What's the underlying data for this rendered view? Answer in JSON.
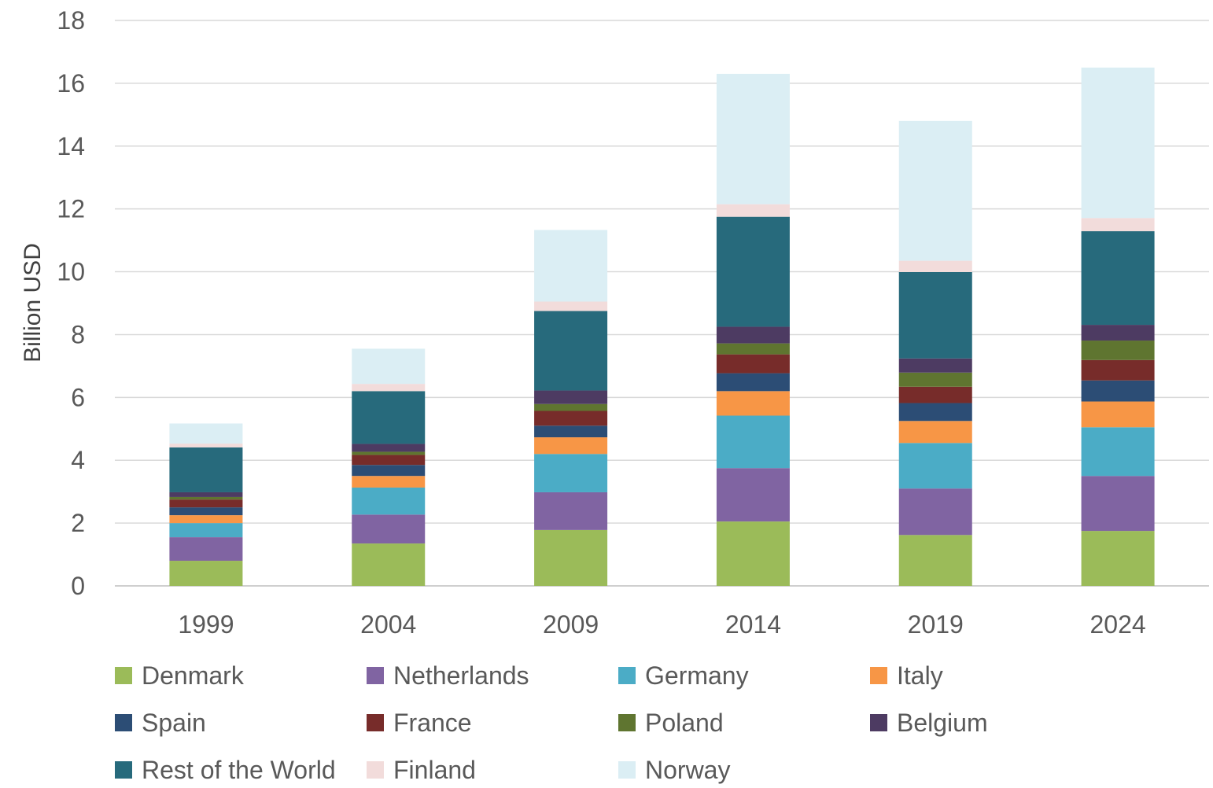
{
  "chart_data": {
    "type": "bar",
    "stacked": true,
    "title": "",
    "xlabel": "",
    "ylabel": "Billion USD",
    "ylim": [
      0,
      18
    ],
    "yticks": [
      0,
      2,
      4,
      6,
      8,
      10,
      12,
      14,
      16,
      18
    ],
    "grid": true,
    "legend_position": "bottom",
    "categories": [
      "1999",
      "2004",
      "2009",
      "2014",
      "2019",
      "2024"
    ],
    "series": [
      {
        "name": "Denmark",
        "color": "#9bbb59",
        "values": [
          0.8,
          1.35,
          1.78,
          2.05,
          1.62,
          1.75
        ]
      },
      {
        "name": "Netherlands",
        "color": "#8064a2",
        "values": [
          0.75,
          0.92,
          1.2,
          1.7,
          1.48,
          1.75
        ]
      },
      {
        "name": "Germany",
        "color": "#4bacc6",
        "values": [
          0.45,
          0.86,
          1.22,
          1.67,
          1.45,
          1.55
        ]
      },
      {
        "name": "Italy",
        "color": "#f79646",
        "values": [
          0.25,
          0.37,
          0.53,
          0.78,
          0.7,
          0.82
        ]
      },
      {
        "name": "Spain",
        "color": "#2c4d75",
        "values": [
          0.25,
          0.35,
          0.37,
          0.57,
          0.57,
          0.67
        ]
      },
      {
        "name": "France",
        "color": "#772c2a",
        "values": [
          0.25,
          0.32,
          0.47,
          0.6,
          0.52,
          0.65
        ]
      },
      {
        "name": "Poland",
        "color": "#5f7530",
        "values": [
          0.08,
          0.1,
          0.22,
          0.35,
          0.45,
          0.62
        ]
      },
      {
        "name": "Belgium",
        "color": "#4d3b62",
        "values": [
          0.15,
          0.25,
          0.43,
          0.53,
          0.45,
          0.5
        ]
      },
      {
        "name": "Rest of the World",
        "color": "#276a7c",
        "values": [
          1.43,
          1.68,
          2.53,
          3.5,
          2.75,
          2.98
        ]
      },
      {
        "name": "Finland",
        "color": "#f2dcdb",
        "values": [
          0.12,
          0.23,
          0.3,
          0.4,
          0.36,
          0.42
        ]
      },
      {
        "name": "Norway",
        "color": "#dbeef4",
        "values": [
          0.64,
          1.12,
          2.28,
          4.15,
          4.45,
          4.79
        ]
      }
    ]
  }
}
